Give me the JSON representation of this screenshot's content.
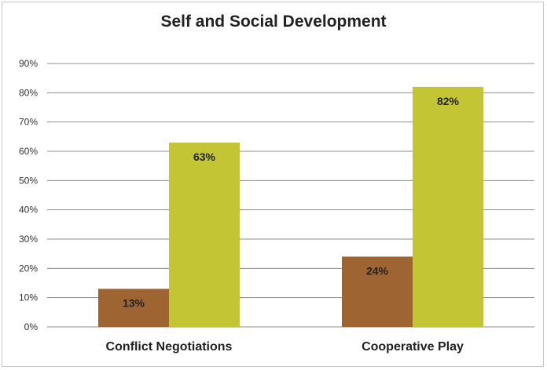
{
  "chart_data": {
    "type": "bar",
    "title": "Self and Social Development",
    "xlabel": "",
    "ylabel": "",
    "categories": [
      "Conflict Negotiations",
      "Cooperative Play"
    ],
    "series": [
      {
        "values": [
          13,
          24
        ],
        "color": "#9e6532",
        "labels": [
          "13%",
          "24%"
        ]
      },
      {
        "values": [
          63,
          82
        ],
        "color": "#c3c534",
        "labels": [
          "63%",
          "82%"
        ]
      }
    ],
    "ylim": [
      0,
      90
    ],
    "yticks": [
      0,
      10,
      20,
      30,
      40,
      50,
      60,
      70,
      80,
      90
    ],
    "ytick_labels": [
      "0%",
      "10%",
      "20%",
      "30%",
      "40%",
      "50%",
      "60%",
      "70%",
      "80%",
      "90%"
    ],
    "grid": true,
    "legend": "none"
  }
}
